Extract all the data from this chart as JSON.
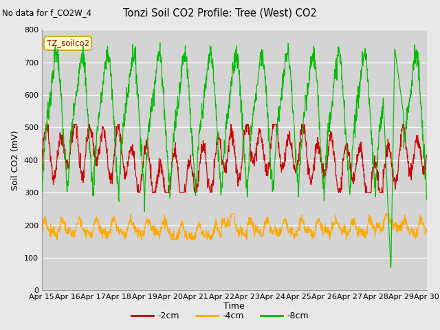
{
  "title": "Tonzi Soil CO2 Profile: Tree (West) CO2",
  "subtitle": "No data for f_CO2W_4",
  "ylabel": "Soil CO2 (mV)",
  "xlabel": "Time",
  "tag_label": "TZ_soilco2",
  "legend_entries": [
    "-2cm",
    "-4cm",
    "-8cm"
  ],
  "legend_colors": [
    "#cc0000",
    "#ffaa00",
    "#00bb00"
  ],
  "line_colors": [
    "#cc0000",
    "#ffaa00",
    "#00bb00"
  ],
  "ylim": [
    0,
    800
  ],
  "yticks": [
    0,
    100,
    200,
    300,
    400,
    500,
    600,
    700,
    800
  ],
  "xtick_labels": [
    "Apr 15",
    "Apr 16",
    "Apr 17",
    "Apr 18",
    "Apr 19",
    "Apr 20",
    "Apr 21",
    "Apr 22",
    "Apr 23",
    "Apr 24",
    "Apr 25",
    "Apr 26",
    "Apr 27",
    "Apr 28",
    "Apr 29",
    "Apr 30"
  ],
  "fig_bg_color": "#e8e8e8",
  "plot_bg_color": "#d4d4d4",
  "n_points": 1440
}
